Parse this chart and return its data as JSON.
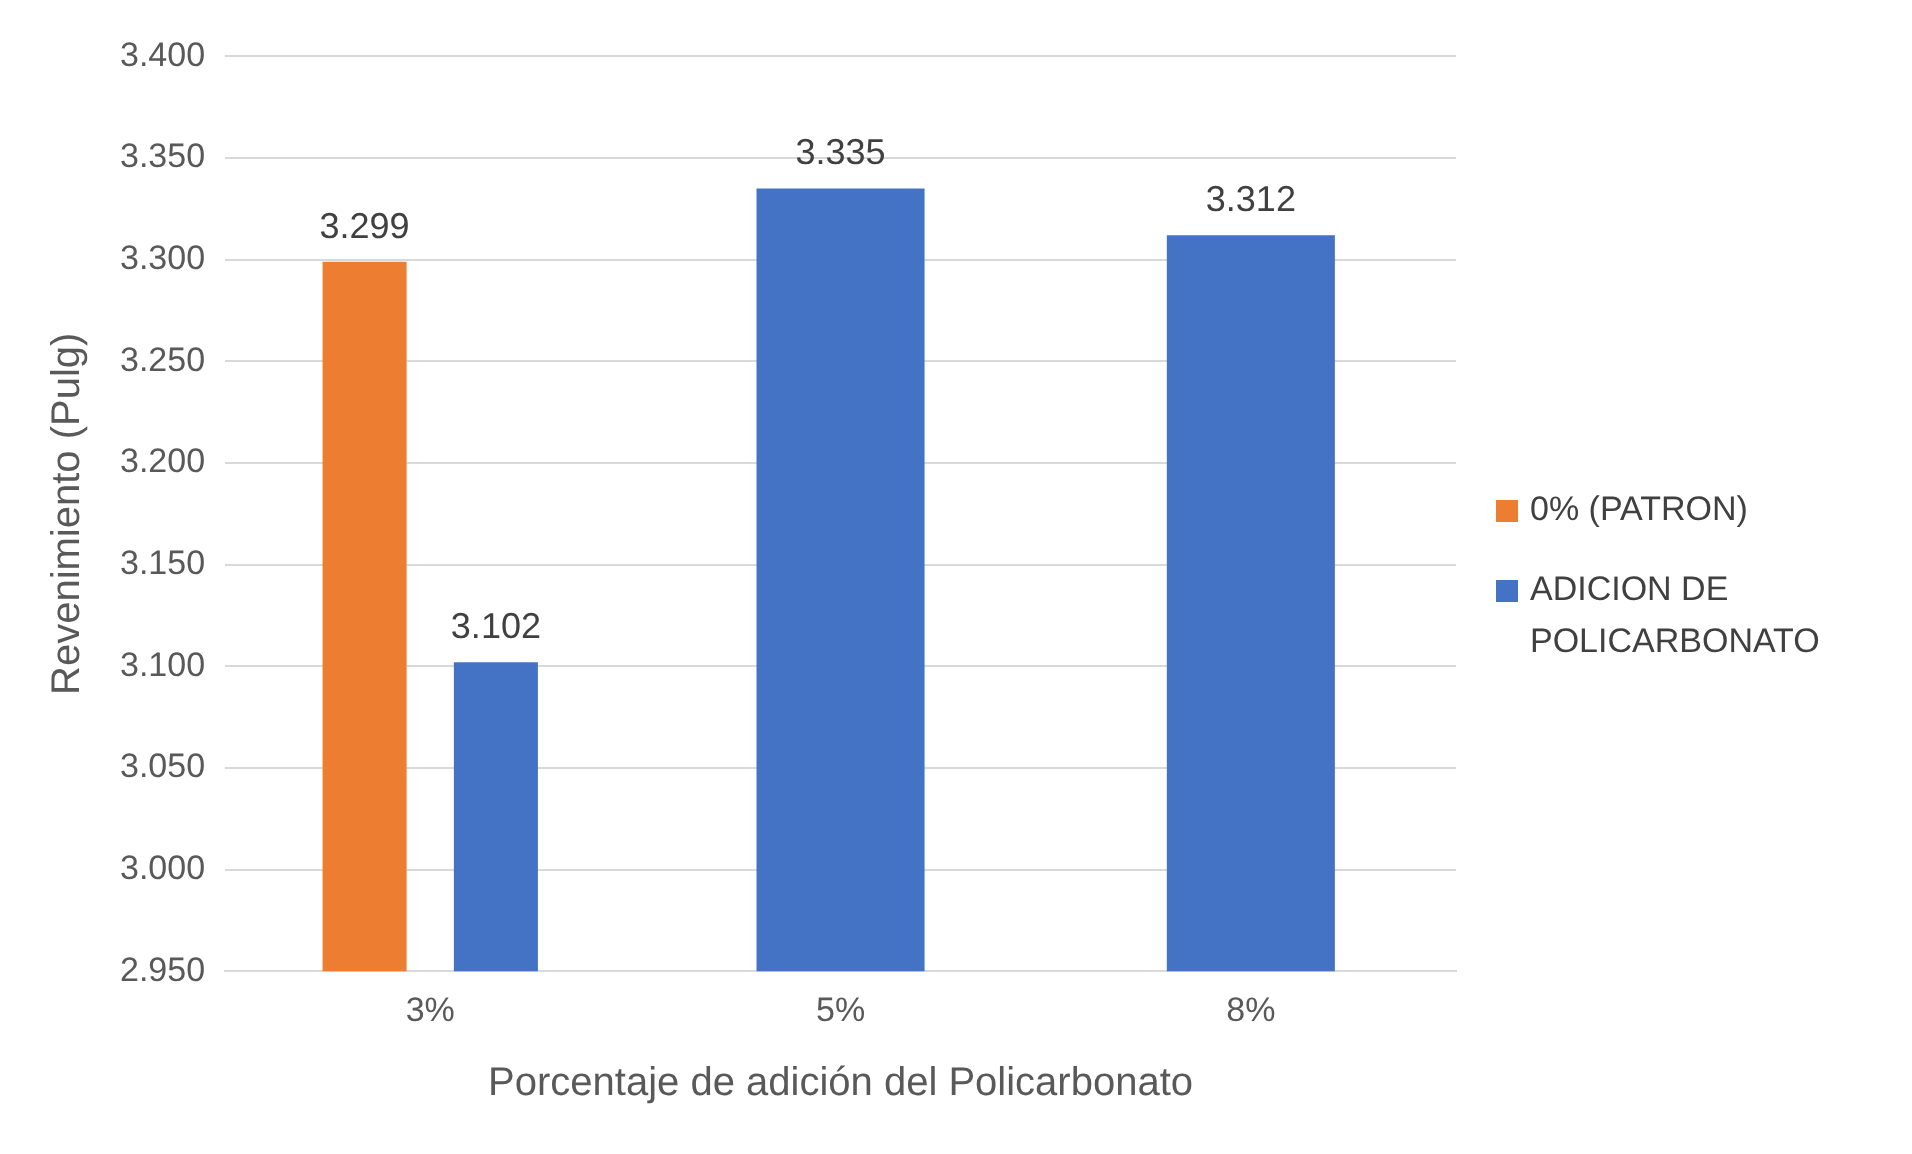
{
  "chart_data": {
    "type": "bar",
    "xlabel": "Porcentaje de adición del Policarbonato",
    "ylabel": "Revenimiento (Pulg)",
    "categories": [
      "3%",
      "5%",
      "8%"
    ],
    "series": [
      {
        "name": "0% (PATRON)",
        "color": "#ed7d31",
        "values": [
          3.299,
          null,
          null
        ]
      },
      {
        "name": "ADICION DE POLICARBONATO",
        "color": "#4472c4",
        "values": [
          3.102,
          3.335,
          3.312
        ]
      }
    ],
    "ylim": [
      2.95,
      3.4
    ],
    "yticks": [
      {
        "value": 2.95,
        "label": "2.950"
      },
      {
        "value": 3.0,
        "label": "3.000"
      },
      {
        "value": 3.05,
        "label": "3.050"
      },
      {
        "value": 3.1,
        "label": "3.100"
      },
      {
        "value": 3.15,
        "label": "3.150"
      },
      {
        "value": 3.2,
        "label": "3.200"
      },
      {
        "value": 3.25,
        "label": "3.250"
      },
      {
        "value": 3.3,
        "label": "3.300"
      },
      {
        "value": 3.35,
        "label": "3.350"
      },
      {
        "value": 3.4,
        "label": "3.400"
      }
    ],
    "grid": "y",
    "legend": "right",
    "data_labels": true
  }
}
